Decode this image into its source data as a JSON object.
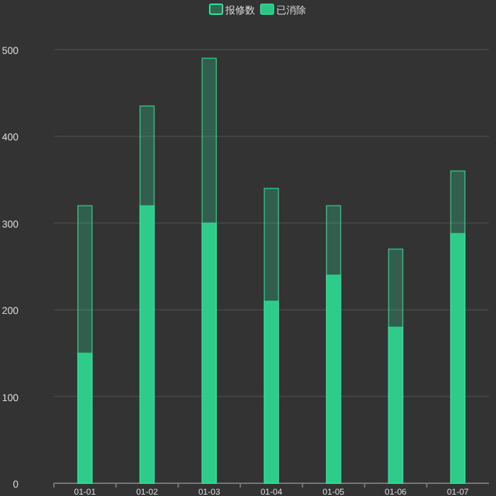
{
  "chart_data": {
    "type": "bar",
    "categories": [
      "01-01",
      "01-02",
      "01-03",
      "01-04",
      "01-05",
      "01-06",
      "01-07"
    ],
    "series": [
      {
        "name": "报修数",
        "color": "#2ee59d",
        "values": [
          320,
          435,
          490,
          340,
          320,
          270,
          360
        ]
      },
      {
        "name": "已消除",
        "color": "#2fd38e",
        "values": [
          150,
          320,
          300,
          210,
          240,
          180,
          288
        ]
      }
    ],
    "ylim": [
      0,
      500
    ],
    "yticks": [
      0,
      100,
      200,
      300,
      400,
      500
    ],
    "grid": "y",
    "legend": "top"
  }
}
